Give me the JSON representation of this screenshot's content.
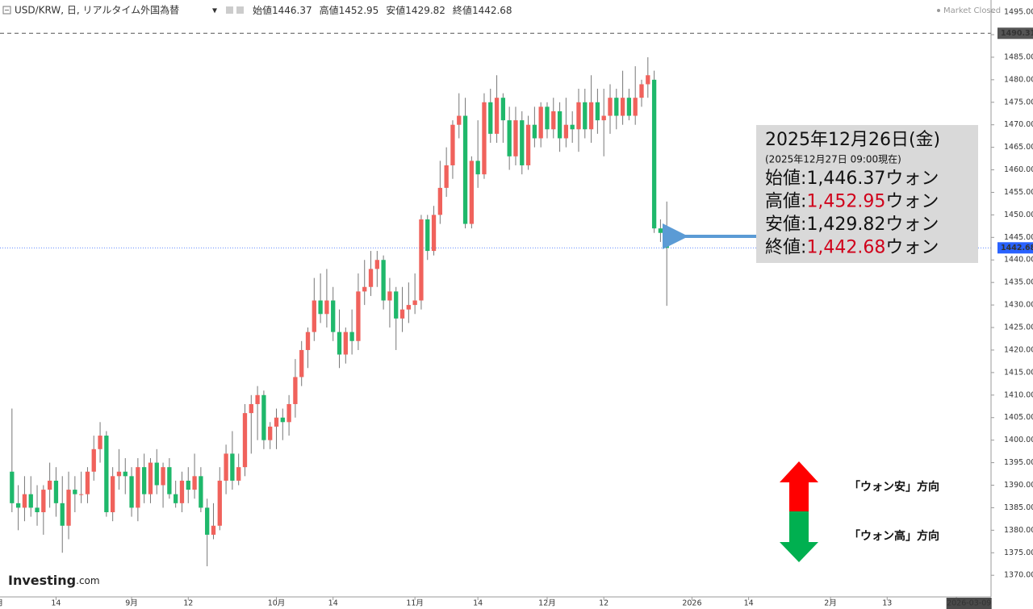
{
  "chart_data": {
    "type": "candlestick",
    "title": "USD/KRW, 日, リアルタイム外国為替",
    "header_ohlc": [
      {
        "label": "始値",
        "value": "1446.37"
      },
      {
        "label": "高値",
        "value": "1452.95"
      },
      {
        "label": "安値",
        "value": "1429.82"
      },
      {
        "label": "終値",
        "value": "1442.68"
      }
    ],
    "status": "Market Closed",
    "brand": {
      "name": "Investing",
      "suffix": ".com"
    },
    "open": [
      1393,
      1386,
      1385,
      1388,
      1385,
      1384,
      1389,
      1391,
      1386,
      1381,
      1389,
      1388,
      1388,
      1393,
      1398,
      1401,
      1384,
      1392,
      1393,
      1392,
      1385,
      1394,
      1388,
      1395,
      1390,
      1394,
      1388,
      1386,
      1391,
      1389,
      1392,
      1385,
      1379,
      1381,
      1391,
      1397,
      1391,
      1394,
      1406,
      1408,
      1410,
      1400,
      1403,
      1405,
      1404,
      1408,
      1414,
      1420,
      1424,
      1431,
      1428,
      1431,
      1424,
      1419,
      1424,
      1422,
      1433,
      1434,
      1438,
      1440,
      1431,
      1433,
      1427,
      1429,
      1430,
      1431,
      1449,
      1442,
      1450,
      1456,
      1461,
      1470,
      1472,
      1448,
      1462,
      1459,
      1475,
      1468,
      1476,
      1471,
      1463,
      1471,
      1461,
      1470,
      1467,
      1474,
      1469,
      1473,
      1467,
      1470,
      1469,
      1475,
      1469,
      1475,
      1471,
      1472,
      1476,
      1472,
      1476,
      1472,
      1476,
      1479,
      1480,
      1447,
      1446.37
    ],
    "high": [
      1407,
      1390,
      1392,
      1392,
      1390,
      1390,
      1395,
      1394,
      1392,
      1393,
      1392,
      1393,
      1394,
      1401,
      1404,
      1402,
      1394,
      1398,
      1396,
      1394,
      1396,
      1397,
      1396,
      1398,
      1395,
      1396,
      1391,
      1393,
      1394,
      1397,
      1394,
      1387,
      1386,
      1394,
      1399,
      1402,
      1397,
      1408,
      1410,
      1412,
      1411,
      1404,
      1407,
      1407,
      1410,
      1418,
      1422,
      1425,
      1436,
      1437,
      1438,
      1434,
      1429,
      1425,
      1429,
      1437,
      1440,
      1442,
      1442,
      1441,
      1436,
      1434,
      1434,
      1435,
      1437,
      1450,
      1450,
      1452,
      1462,
      1465,
      1471,
      1477,
      1476,
      1463,
      1471,
      1477,
      1478,
      1481,
      1477,
      1474,
      1474,
      1473,
      1472,
      1474,
      1475,
      1475,
      1476,
      1475,
      1476,
      1473,
      1478,
      1478,
      1481,
      1478,
      1478,
      1479,
      1478,
      1482,
      1478,
      1483,
      1480,
      1485,
      1482,
      1449,
      1452.95
    ],
    "low": [
      1384,
      1380,
      1382,
      1383,
      1381,
      1379,
      1385,
      1383,
      1375,
      1378,
      1384,
      1386,
      1386,
      1391,
      1395,
      1383,
      1382,
      1389,
      1388,
      1383,
      1382,
      1386,
      1386,
      1388,
      1385,
      1387,
      1385,
      1384,
      1386,
      1387,
      1384,
      1372,
      1378,
      1380,
      1388,
      1389,
      1390,
      1392,
      1397,
      1400,
      1398,
      1398,
      1398,
      1400,
      1401,
      1405,
      1412,
      1416,
      1422,
      1426,
      1425,
      1422,
      1416,
      1417,
      1419,
      1420,
      1430,
      1432,
      1434,
      1429,
      1425,
      1420,
      1424,
      1426,
      1428,
      1429,
      1440,
      1441,
      1448,
      1454,
      1458,
      1467,
      1447,
      1447,
      1456,
      1458,
      1466,
      1466,
      1466,
      1460,
      1461,
      1459,
      1460,
      1465,
      1465,
      1467,
      1467,
      1464,
      1465,
      1466,
      1464,
      1467,
      1466,
      1468,
      1463,
      1468,
      1469,
      1470,
      1471,
      1470,
      1474,
      1476,
      1446,
      1444,
      1429.82
    ],
    "close": [
      1386,
      1385,
      1388,
      1385,
      1384,
      1389,
      1391,
      1386,
      1381,
      1389,
      1388,
      1388,
      1393,
      1398,
      1401,
      1384,
      1392,
      1393,
      1392,
      1385,
      1394,
      1388,
      1395,
      1390,
      1394,
      1388,
      1386,
      1391,
      1389,
      1392,
      1385,
      1379,
      1381,
      1391,
      1397,
      1391,
      1394,
      1406,
      1408,
      1410,
      1400,
      1403,
      1405,
      1404,
      1408,
      1414,
      1420,
      1424,
      1431,
      1428,
      1431,
      1424,
      1419,
      1424,
      1422,
      1433,
      1434,
      1438,
      1440,
      1431,
      1433,
      1427,
      1429,
      1430,
      1431,
      1449,
      1442,
      1450,
      1456,
      1461,
      1470,
      1472,
      1448,
      1462,
      1459,
      1475,
      1468,
      1476,
      1471,
      1463,
      1471,
      1461,
      1470,
      1467,
      1474,
      1469,
      1473,
      1467,
      1470,
      1469,
      1475,
      1469,
      1475,
      1471,
      1472,
      1476,
      1472,
      1476,
      1472,
      1476,
      1479,
      1481,
      1447,
      1446,
      1442.68
    ],
    "up_color": "#f0625c",
    "down_color": "#1fb86b",
    "wick_color": "#777777",
    "xlim": [
      -1.9,
      155.5
    ],
    "xticks": [
      {
        "value": -2,
        "label": "月"
      },
      {
        "value": 7,
        "label": "14"
      },
      {
        "value": 19,
        "label": "9月"
      },
      {
        "value": 28,
        "label": "12"
      },
      {
        "value": 42,
        "label": "10月"
      },
      {
        "value": 51,
        "label": "14"
      },
      {
        "value": 64,
        "label": "11月"
      },
      {
        "value": 74,
        "label": "14"
      },
      {
        "value": 85,
        "label": "12月"
      },
      {
        "value": 94,
        "label": "12"
      },
      {
        "value": 108,
        "label": "2026"
      },
      {
        "value": 117,
        "label": "14"
      },
      {
        "value": 130,
        "label": "2月"
      },
      {
        "value": 139,
        "label": "13"
      },
      {
        "value": 150,
        "label": "3"
      }
    ],
    "cursor_date": {
      "value": 152,
      "label": "2026-03-09"
    },
    "ylim": [
      1365.2,
      1497.7
    ],
    "yticks": [
      {
        "value": 1370,
        "label": "1370.00"
      },
      {
        "value": 1375,
        "label": "1375.00"
      },
      {
        "value": 1380,
        "label": "1380.00"
      },
      {
        "value": 1385,
        "label": "1385.00"
      },
      {
        "value": 1390,
        "label": "1390.00"
      },
      {
        "value": 1395,
        "label": "1395.00"
      },
      {
        "value": 1400,
        "label": "1400.00"
      },
      {
        "value": 1405,
        "label": "1405.00"
      },
      {
        "value": 1410,
        "label": "1410.00"
      },
      {
        "value": 1415,
        "label": "1415.00"
      },
      {
        "value": 1420,
        "label": "1420.00"
      },
      {
        "value": 1425,
        "label": "1425.00"
      },
      {
        "value": 1430,
        "label": "1430.00"
      },
      {
        "value": 1435,
        "label": "1435.00"
      },
      {
        "value": 1440,
        "label": "1440.00"
      },
      {
        "value": 1445,
        "label": "1445.00"
      },
      {
        "value": 1450,
        "label": "1450.00"
      },
      {
        "value": 1455,
        "label": "1455.00"
      },
      {
        "value": 1460,
        "label": "1460.00"
      },
      {
        "value": 1465,
        "label": "1465.00"
      },
      {
        "value": 1470,
        "label": "1470.00"
      },
      {
        "value": 1475,
        "label": "1475.00"
      },
      {
        "value": 1480,
        "label": "1480.00"
      },
      {
        "value": 1485,
        "label": "1485.00"
      },
      {
        "value": 1490,
        "label": "1490.00"
      },
      {
        "value": 1495,
        "label": "1495.00"
      }
    ],
    "price_lines": [
      {
        "value": 1490.31,
        "color": "#555555",
        "style": "dashed"
      },
      {
        "value": 1442.68,
        "color": "#2962ff",
        "style": "dotted"
      }
    ],
    "info_box": {
      "date": "2025年12月26日(金)",
      "asof": "(2025年12月27日 09:00現在)",
      "separator": ":",
      "rows": [
        {
          "label": "始値",
          "value": "1,446.37",
          "unit": "ウォン",
          "color": "#111111"
        },
        {
          "label": "高値",
          "value": "1,452.95",
          "unit": "ウォン",
          "color": "#d0021b"
        },
        {
          "label": "安値",
          "value": "1,429.82",
          "unit": "ウォン",
          "color": "#111111"
        },
        {
          "label": "終値",
          "value": "1,442.68",
          "unit": "ウォン",
          "color": "#d0021b"
        }
      ]
    },
    "direction_legend": {
      "up": "「ウォン安」方向",
      "down": "「ウォン高」方向"
    }
  }
}
